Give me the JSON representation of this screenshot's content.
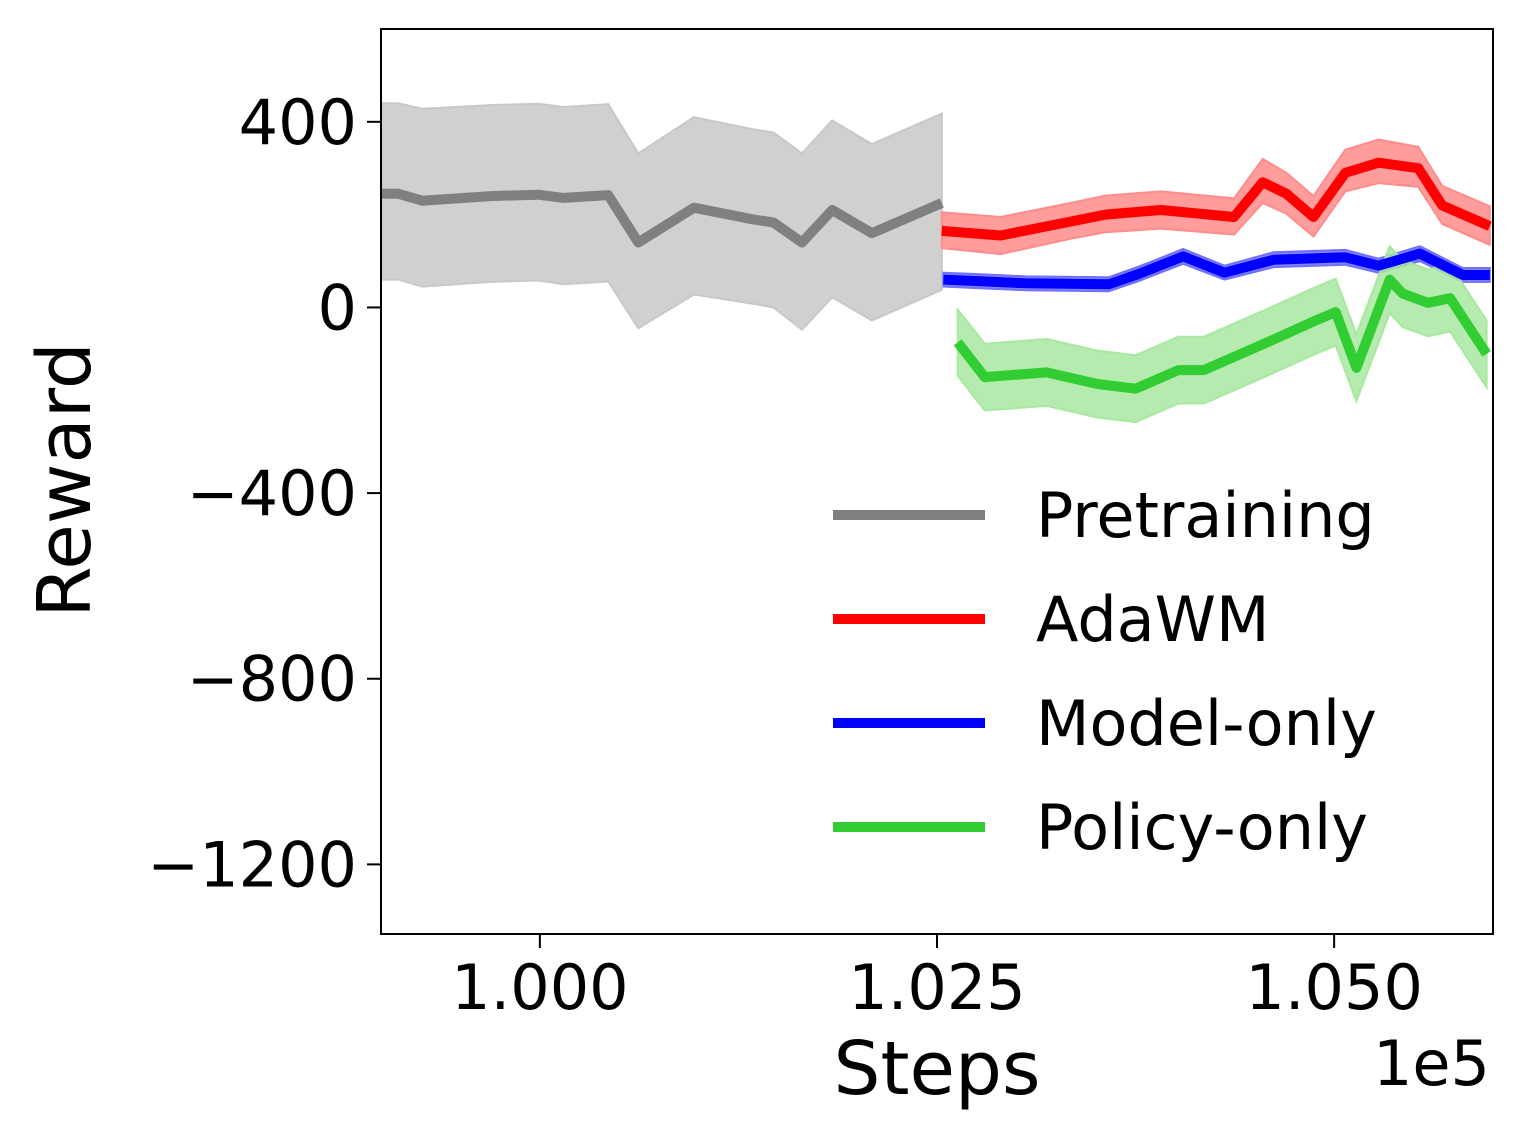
{
  "chart_data": {
    "type": "line",
    "title": "",
    "xlabel": "Steps",
    "ylabel": "Reward",
    "x_offset_label": "1e5",
    "xlim": [
      0.99,
      1.06
    ],
    "ylim": [
      -1350,
      600
    ],
    "xticks": [
      1.0,
      1.025,
      1.05
    ],
    "xtick_labels": [
      "1.000",
      "1.025",
      "1.050"
    ],
    "yticks": [
      400,
      0,
      -400,
      -800,
      -1200
    ],
    "ytick_labels": [
      "400",
      "0",
      "−400",
      "−800",
      "−1200"
    ],
    "grid": false,
    "legend_position": "lower-right",
    "series": [
      {
        "name": "Pretraining",
        "color": "#808080",
        "band_color": "#c8c8c8",
        "x": [
          0.99,
          0.9911,
          0.9926,
          0.9969,
          0.9999,
          1.0015,
          1.0043,
          1.0062,
          1.0097,
          1.0134,
          1.0147,
          1.0165,
          1.0184,
          1.0209,
          1.0253
        ],
        "y": [
          245,
          245,
          230,
          240,
          243,
          236,
          242,
          140,
          215,
          190,
          183,
          140,
          210,
          160,
          225
        ],
        "upper": [
          440,
          440,
          428,
          436,
          439,
          432,
          438,
          332,
          410,
          384,
          377,
          332,
          403,
          352,
          418
        ],
        "lower": [
          60,
          60,
          45,
          55,
          58,
          50,
          56,
          -45,
          28,
          8,
          0,
          -48,
          22,
          -28,
          38
        ],
        "y_end": 245,
        "upper_end": 436,
        "lower_end": 55
      },
      {
        "name": "AdaWM",
        "color": "#ff0000",
        "band_color": "#ff8c8c",
        "x": [
          1.0253,
          1.029,
          1.0334,
          1.0356,
          1.0391,
          1.0437,
          1.0455,
          1.047,
          1.0487,
          1.0507,
          1.0528,
          1.0553,
          1.0568,
          1.0598
        ],
        "y": [
          165,
          155,
          185,
          200,
          210,
          195,
          270,
          245,
          195,
          290,
          312,
          300,
          220,
          175
        ],
        "upper": [
          205,
          195,
          225,
          241,
          250,
          235,
          320,
          290,
          240,
          340,
          362,
          346,
          262,
          218
        ],
        "lower": [
          128,
          115,
          148,
          162,
          170,
          157,
          225,
          202,
          153,
          250,
          268,
          260,
          180,
          135
        ]
      },
      {
        "name": "Model-only",
        "color": "#0000ff",
        "band_color": "#7070ff",
        "x": [
          1.0254,
          1.0274,
          1.0306,
          1.0358,
          1.0377,
          1.0405,
          1.0431,
          1.0462,
          1.0507,
          1.0528,
          1.0554,
          1.0581,
          1.0598
        ],
        "y": [
          60,
          57,
          52,
          50,
          72,
          110,
          75,
          103,
          108,
          90,
          116,
          70,
          70
        ],
        "upper": [
          75,
          72,
          67,
          65,
          88,
          126,
          90,
          119,
          124,
          105,
          132,
          85,
          85
        ],
        "lower": [
          45,
          42,
          37,
          35,
          57,
          94,
          60,
          87,
          92,
          75,
          100,
          55,
          55
        ]
      },
      {
        "name": "Policy-only",
        "color": "#32cd32",
        "band_color": "#a8e8a0",
        "x": [
          1.0263,
          1.028,
          1.0319,
          1.0351,
          1.0375,
          1.0402,
          1.0418,
          1.0458,
          1.0487,
          1.0501,
          1.0514,
          1.0535,
          1.0543,
          1.0559,
          1.0573,
          1.0596
        ],
        "y": [
          -75,
          -150,
          -140,
          -165,
          -175,
          -135,
          -135,
          -75,
          -30,
          -10,
          -130,
          60,
          30,
          10,
          20,
          -100
        ],
        "upper": [
          -5,
          -78,
          -68,
          -93,
          -103,
          -63,
          -63,
          -3,
          42,
          62,
          -58,
          132,
          102,
          82,
          92,
          -28
        ],
        "lower": [
          -147,
          -222,
          -212,
          -237,
          -247,
          -207,
          -207,
          -147,
          -102,
          -82,
          -202,
          -12,
          -42,
          -62,
          -52,
          -172
        ]
      }
    ]
  }
}
